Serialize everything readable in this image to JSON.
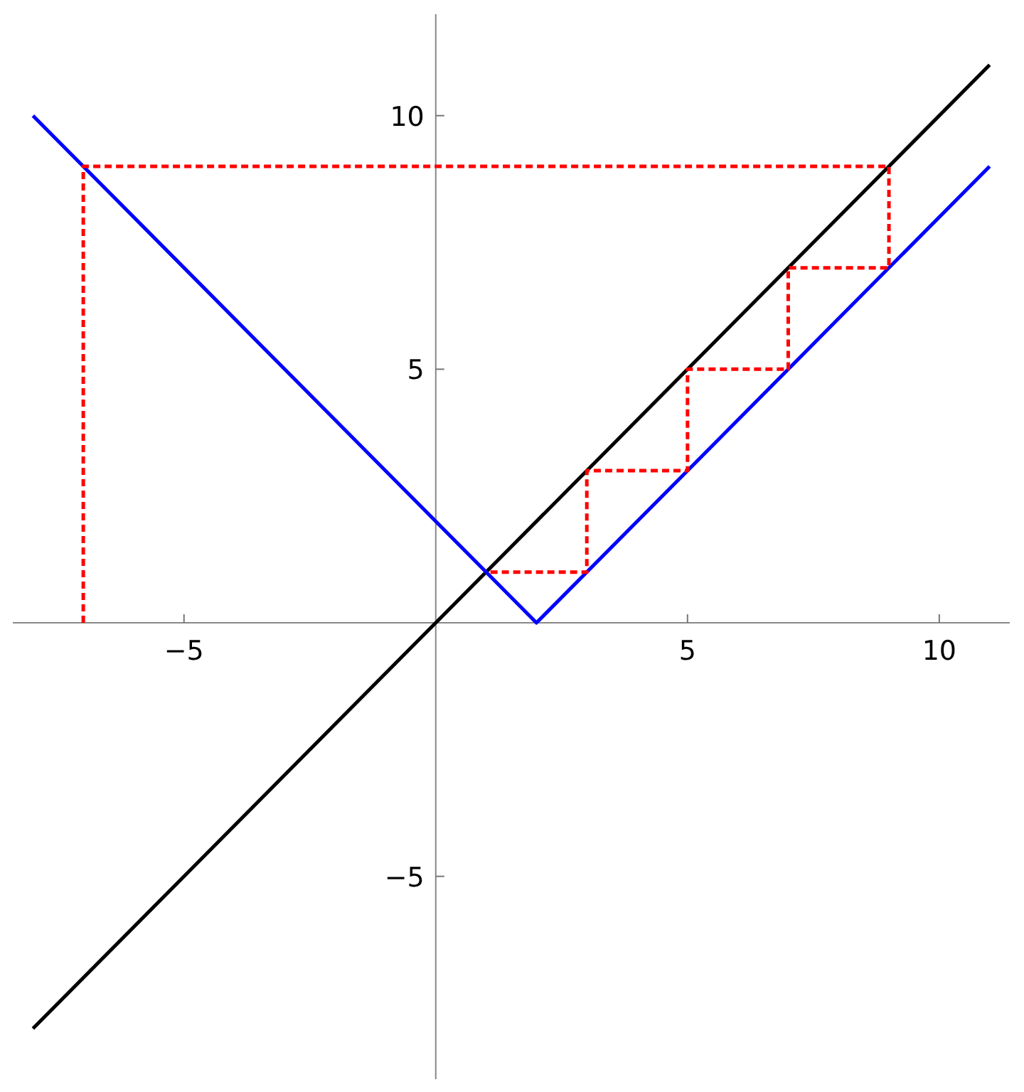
{
  "chart_data": {
    "type": "line",
    "xlim": [
      -8.4,
      11.4
    ],
    "ylim": [
      -9,
      12
    ],
    "xticks": [
      -5,
      5,
      10
    ],
    "yticks": [
      -5,
      5,
      10
    ],
    "marker": "none",
    "series": [
      {
        "color": "#000000",
        "x": [
          -8,
          11
        ],
        "values": [
          -8,
          11
        ],
        "line_style": "solid"
      },
      {
        "color": "#0000ff",
        "x": [
          -8,
          2,
          11
        ],
        "values": [
          10,
          0,
          9
        ],
        "line_style": "solid"
      },
      {
        "color": "#ff0000",
        "x": [
          -7,
          -7,
          9,
          9,
          7,
          7,
          5,
          5,
          3,
          3,
          1
        ],
        "values": [
          0,
          9,
          9,
          7,
          7,
          5,
          5,
          3,
          3,
          1,
          1
        ],
        "line_style": "dashed"
      }
    ]
  }
}
